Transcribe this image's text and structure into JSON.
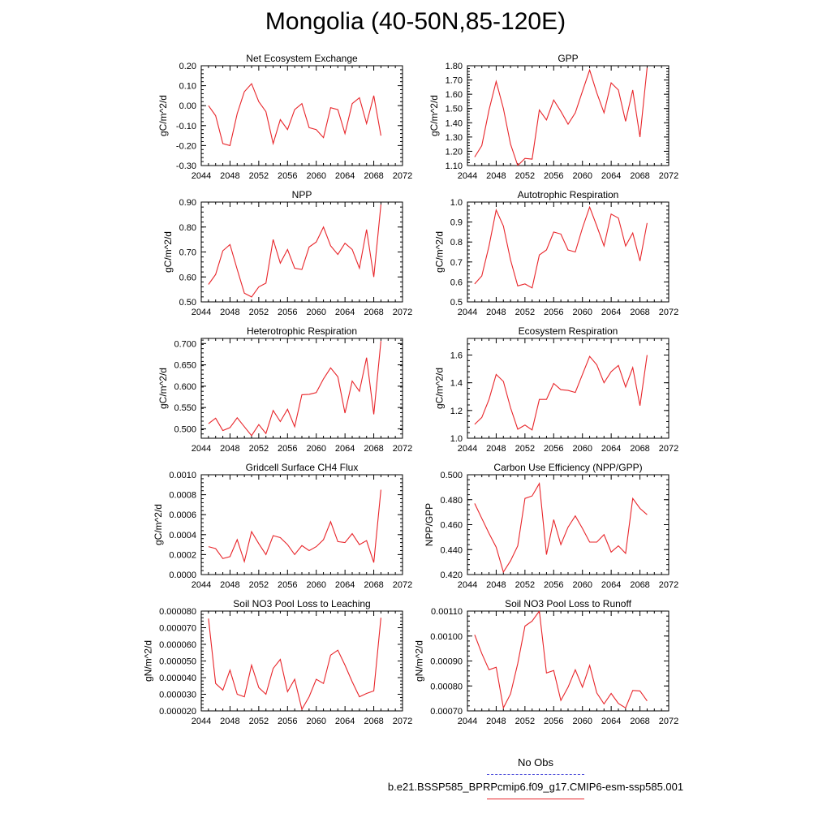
{
  "figure": {
    "title": "Mongolia (40-50N,85-120E)",
    "legend": [
      {
        "label": "No Obs",
        "color": "#3b3bd6",
        "dash": "dashed"
      },
      {
        "label": "b.e21.BSSP585_BPRPcmip6.f09_g17.CMIP6-esm-ssp585.001",
        "color": "#e8252a",
        "dash": "solid"
      }
    ],
    "line_color": "#e8252a"
  },
  "chart_data": [
    {
      "type": "line",
      "title": "Net Ecosystem Exchange",
      "ylabel": "gC/m^2/d",
      "xlabel": "",
      "xlim": [
        2044,
        2072
      ],
      "xticks": [
        "2044",
        "2048",
        "2052",
        "2056",
        "2060",
        "2064",
        "2068",
        "2072"
      ],
      "ylim": [
        -0.3,
        0.2
      ],
      "yticks": [
        "-0.30",
        "-0.20",
        "-0.10",
        "0.00",
        "0.10",
        "0.20"
      ],
      "x": [
        2045,
        2046,
        2047,
        2048,
        2049,
        2050,
        2051,
        2052,
        2053,
        2054,
        2055,
        2056,
        2057,
        2058,
        2059,
        2060,
        2061,
        2062,
        2063,
        2064,
        2065,
        2066,
        2067,
        2068,
        2069
      ],
      "values": [
        0.0,
        -0.05,
        -0.19,
        -0.2,
        -0.04,
        0.07,
        0.11,
        0.02,
        -0.03,
        -0.19,
        -0.07,
        -0.12,
        -0.02,
        0.01,
        -0.11,
        -0.12,
        -0.16,
        -0.01,
        -0.02,
        -0.14,
        0.01,
        0.04,
        -0.09,
        0.05,
        -0.15
      ]
    },
    {
      "type": "line",
      "title": "GPP",
      "ylabel": "gC/m^2/d",
      "xlabel": "",
      "xlim": [
        2044,
        2072
      ],
      "xticks": [
        "2044",
        "2048",
        "2052",
        "2056",
        "2060",
        "2064",
        "2068",
        "2072"
      ],
      "ylim": [
        1.1,
        1.8
      ],
      "yticks": [
        "1.10",
        "1.20",
        "1.30",
        "1.40",
        "1.50",
        "1.60",
        "1.70",
        "1.80"
      ],
      "x": [
        2045,
        2046,
        2047,
        2048,
        2049,
        2050,
        2051,
        2052,
        2053,
        2054,
        2055,
        2056,
        2057,
        2058,
        2059,
        2060,
        2061,
        2062,
        2063,
        2064,
        2065,
        2066,
        2067,
        2068,
        2069
      ],
      "values": [
        1.16,
        1.24,
        1.49,
        1.69,
        1.5,
        1.25,
        1.1,
        1.15,
        1.145,
        1.49,
        1.42,
        1.56,
        1.48,
        1.39,
        1.47,
        1.62,
        1.77,
        1.61,
        1.47,
        1.68,
        1.63,
        1.41,
        1.63,
        1.3,
        1.785
      ]
    },
    {
      "type": "line",
      "title": "NPP",
      "ylabel": "gC/m^2/d",
      "xlabel": "",
      "xlim": [
        2044,
        2072
      ],
      "xticks": [
        "2044",
        "2048",
        "2052",
        "2056",
        "2060",
        "2064",
        "2068",
        "2072"
      ],
      "ylim": [
        0.5,
        0.9
      ],
      "yticks": [
        "0.50",
        "0.60",
        "0.70",
        "0.80",
        "0.90"
      ],
      "x": [
        2045,
        2046,
        2047,
        2048,
        2049,
        2050,
        2051,
        2052,
        2053,
        2054,
        2055,
        2056,
        2057,
        2058,
        2059,
        2060,
        2061,
        2062,
        2063,
        2064,
        2065,
        2066,
        2067,
        2068,
        2069
      ],
      "values": [
        0.57,
        0.61,
        0.705,
        0.73,
        0.63,
        0.535,
        0.52,
        0.56,
        0.575,
        0.75,
        0.655,
        0.71,
        0.635,
        0.63,
        0.72,
        0.74,
        0.8,
        0.725,
        0.69,
        0.735,
        0.71,
        0.635,
        0.79,
        0.6,
        0.89
      ]
    },
    {
      "type": "line",
      "title": "Autotrophic Respiration",
      "ylabel": "gC/m^2/d",
      "xlabel": "",
      "xlim": [
        2044,
        2072
      ],
      "xticks": [
        "2044",
        "2048",
        "2052",
        "2056",
        "2060",
        "2064",
        "2068",
        "2072"
      ],
      "ylim": [
        0.5,
        1.0
      ],
      "yticks": [
        "0.5",
        "0.6",
        "0.7",
        "0.8",
        "0.9",
        "1.0"
      ],
      "x": [
        2045,
        2046,
        2047,
        2048,
        2049,
        2050,
        2051,
        2052,
        2053,
        2054,
        2055,
        2056,
        2057,
        2058,
        2059,
        2060,
        2061,
        2062,
        2063,
        2064,
        2065,
        2066,
        2067,
        2068,
        2069
      ],
      "values": [
        0.59,
        0.63,
        0.78,
        0.96,
        0.88,
        0.71,
        0.58,
        0.59,
        0.57,
        0.735,
        0.76,
        0.85,
        0.84,
        0.76,
        0.75,
        0.87,
        0.975,
        0.88,
        0.78,
        0.94,
        0.92,
        0.78,
        0.845,
        0.705,
        0.895
      ]
    },
    {
      "type": "line",
      "title": "Heterotrophic Respiration",
      "ylabel": "gC/m^2/d",
      "xlabel": "",
      "xlim": [
        2044,
        2072
      ],
      "xticks": [
        "2044",
        "2048",
        "2052",
        "2056",
        "2060",
        "2064",
        "2068",
        "2072"
      ],
      "ylim": [
        0.478,
        0.712
      ],
      "yticks": [
        "0.500",
        "0.550",
        "0.600",
        "0.650",
        "0.700"
      ],
      "x": [
        2045,
        2046,
        2047,
        2048,
        2049,
        2050,
        2051,
        2052,
        2053,
        2054,
        2055,
        2056,
        2057,
        2058,
        2059,
        2060,
        2061,
        2062,
        2063,
        2064,
        2065,
        2066,
        2067,
        2068,
        2069
      ],
      "values": [
        0.512,
        0.525,
        0.496,
        0.503,
        0.526,
        0.505,
        0.484,
        0.51,
        0.489,
        0.543,
        0.517,
        0.546,
        0.505,
        0.58,
        0.581,
        0.585,
        0.617,
        0.643,
        0.622,
        0.537,
        0.612,
        0.588,
        0.667,
        0.534,
        0.706
      ]
    },
    {
      "type": "line",
      "title": "Ecosystem Respiration",
      "ylabel": "gC/m^2/d",
      "xlabel": "",
      "xlim": [
        2044,
        2072
      ],
      "xticks": [
        "2044",
        "2048",
        "2052",
        "2056",
        "2060",
        "2064",
        "2068",
        "2072"
      ],
      "ylim": [
        1.0,
        1.72
      ],
      "yticks": [
        "1.0",
        "1.2",
        "1.4",
        "1.6"
      ],
      "x": [
        2045,
        2046,
        2047,
        2048,
        2049,
        2050,
        2051,
        2052,
        2053,
        2054,
        2055,
        2056,
        2057,
        2058,
        2059,
        2060,
        2061,
        2062,
        2063,
        2064,
        2065,
        2066,
        2067,
        2068,
        2069
      ],
      "values": [
        1.1,
        1.15,
        1.28,
        1.46,
        1.41,
        1.22,
        1.065,
        1.095,
        1.06,
        1.28,
        1.28,
        1.395,
        1.35,
        1.345,
        1.33,
        1.46,
        1.59,
        1.53,
        1.4,
        1.48,
        1.525,
        1.37,
        1.51,
        1.235,
        1.6
      ]
    },
    {
      "type": "line",
      "title": "Gridcell Surface CH4 Flux",
      "ylabel": "gC/m^2/d",
      "xlabel": "",
      "xlim": [
        2044,
        2072
      ],
      "xticks": [
        "2044",
        "2048",
        "2052",
        "2056",
        "2060",
        "2064",
        "2068",
        "2072"
      ],
      "ylim": [
        0.0,
        0.001
      ],
      "yticks": [
        "0.0000",
        "0.0002",
        "0.0004",
        "0.0006",
        "0.0008",
        "0.0010"
      ],
      "x": [
        2045,
        2046,
        2047,
        2048,
        2049,
        2050,
        2051,
        2052,
        2053,
        2054,
        2055,
        2056,
        2057,
        2058,
        2059,
        2060,
        2061,
        2062,
        2063,
        2064,
        2065,
        2066,
        2067,
        2068,
        2069
      ],
      "values": [
        0.00028,
        0.00026,
        0.00016,
        0.00018,
        0.00035,
        0.00013,
        0.00043,
        0.00031,
        0.0002,
        0.00039,
        0.00037,
        0.0003,
        0.0002,
        0.00029,
        0.00024,
        0.00028,
        0.00035,
        0.00053,
        0.00033,
        0.00032,
        0.00041,
        0.0003,
        0.00034,
        0.00012,
        0.00085
      ]
    },
    {
      "type": "line",
      "title": "Carbon Use Efficiency (NPP/GPP)",
      "ylabel": "NPP/GPP",
      "xlabel": "",
      "xlim": [
        2044,
        2072
      ],
      "xticks": [
        "2044",
        "2048",
        "2052",
        "2056",
        "2060",
        "2064",
        "2068",
        "2072"
      ],
      "ylim": [
        0.42,
        0.5
      ],
      "yticks": [
        "0.420",
        "0.440",
        "0.460",
        "0.480",
        "0.500"
      ],
      "x": [
        2045,
        2046,
        2047,
        2048,
        2049,
        2050,
        2051,
        2052,
        2053,
        2054,
        2055,
        2056,
        2057,
        2058,
        2059,
        2060,
        2061,
        2062,
        2063,
        2064,
        2065,
        2066,
        2067,
        2068,
        2069
      ],
      "values": [
        0.477,
        0.465,
        0.453,
        0.442,
        0.422,
        0.431,
        0.443,
        0.481,
        0.483,
        0.493,
        0.436,
        0.464,
        0.444,
        0.458,
        0.467,
        0.457,
        0.446,
        0.446,
        0.452,
        0.438,
        0.443,
        0.437,
        0.481,
        0.473,
        0.468
      ]
    },
    {
      "type": "line",
      "title": "Soil NO3 Pool Loss to Leaching",
      "ylabel": "gN/m^2/d",
      "xlabel": "",
      "xlim": [
        2044,
        2072
      ],
      "xticks": [
        "2044",
        "2048",
        "2052",
        "2056",
        "2060",
        "2064",
        "2068",
        "2072"
      ],
      "ylim": [
        2e-05,
        8e-05
      ],
      "yticks": [
        "0.000020",
        "0.000030",
        "0.000040",
        "0.000050",
        "0.000060",
        "0.000070",
        "0.000080"
      ],
      "x": [
        2045,
        2046,
        2047,
        2048,
        2049,
        2050,
        2051,
        2052,
        2053,
        2054,
        2055,
        2056,
        2057,
        2058,
        2059,
        2060,
        2061,
        2062,
        2063,
        2064,
        2065,
        2066,
        2067,
        2068,
        2069
      ],
      "values": [
        7.55e-05,
        3.65e-05,
        3.25e-05,
        4.45e-05,
        3e-05,
        2.85e-05,
        4.75e-05,
        3.4e-05,
        3e-05,
        4.55e-05,
        5.1e-05,
        3.15e-05,
        3.9e-05,
        2.1e-05,
        2.85e-05,
        3.9e-05,
        3.65e-05,
        5.35e-05,
        5.65e-05,
        4.75e-05,
        3.75e-05,
        2.85e-05,
        3.05e-05,
        3.2e-05,
        7.6e-05
      ]
    },
    {
      "type": "line",
      "title": "Soil NO3 Pool Loss to Runoff",
      "ylabel": "gN/m^2/d",
      "xlabel": "",
      "xlim": [
        2044,
        2072
      ],
      "xticks": [
        "2044",
        "2048",
        "2052",
        "2056",
        "2060",
        "2064",
        "2068",
        "2072"
      ],
      "ylim": [
        0.0007,
        0.0011
      ],
      "yticks": [
        "0.00070",
        "0.00080",
        "0.00090",
        "0.00100",
        "0.00110"
      ],
      "x": [
        2045,
        2046,
        2047,
        2048,
        2049,
        2050,
        2051,
        2052,
        2053,
        2054,
        2055,
        2056,
        2057,
        2058,
        2059,
        2060,
        2061,
        2062,
        2063,
        2064,
        2065,
        2066,
        2067,
        2068,
        2069
      ],
      "values": [
        0.001005,
        0.00093,
        0.000865,
        0.000875,
        0.000712,
        0.000768,
        0.00089,
        0.00104,
        0.00106,
        0.0011,
        0.000852,
        0.000862,
        0.000742,
        0.000795,
        0.000865,
        0.000795,
        0.000882,
        0.000772,
        0.000728,
        0.00077,
        0.00073,
        0.000712,
        0.000782,
        0.00078,
        0.00074
      ]
    }
  ]
}
